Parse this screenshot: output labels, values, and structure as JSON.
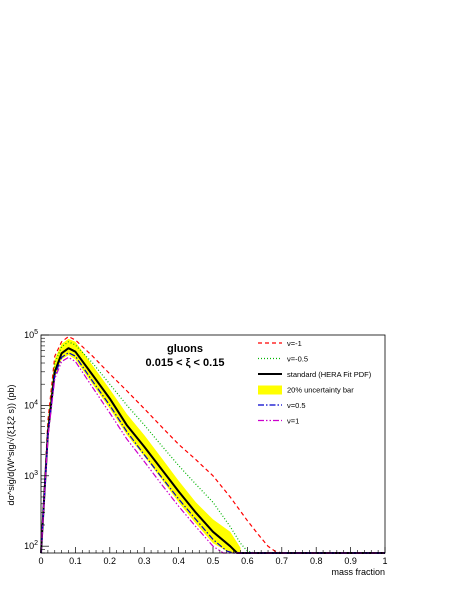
{
  "chart_data": {
    "type": "line",
    "xlabel": "mass fraction",
    "ylabel": "dσ^sig/d(W^sig/√(ξ1ξ2 s)) (pb)",
    "xlim": [
      0,
      1
    ],
    "ylim": [
      80,
      100000
    ],
    "yscale": "log",
    "x_ticks": [
      "0",
      "0.1",
      "0.2",
      "0.3",
      "0.4",
      "0.5",
      "0.6",
      "0.7",
      "0.8",
      "0.9",
      "1"
    ],
    "y_ticks": [
      {
        "base": "10",
        "exp": "2",
        "value": 100
      },
      {
        "base": "10",
        "exp": "3",
        "value": 1000
      },
      {
        "base": "10",
        "exp": "4",
        "value": 10000
      },
      {
        "base": "10",
        "exp": "5",
        "value": 100000
      }
    ],
    "annotation": {
      "title": "gluons",
      "subtitle": "0.015 < ξ < 0.15"
    },
    "legend_position": "top-right",
    "band": {
      "name": "20% uncertainty bar",
      "color": "#ffff00",
      "x": [
        0.0,
        0.02,
        0.04,
        0.06,
        0.08,
        0.1,
        0.15,
        0.2,
        0.25,
        0.3,
        0.35,
        0.4,
        0.45,
        0.5,
        0.55,
        0.58
      ],
      "lower": [
        80,
        3000,
        25000,
        45000,
        52000,
        45000,
        20000,
        9000,
        3800,
        1900,
        900,
        420,
        210,
        110,
        80,
        80
      ],
      "upper": [
        80,
        6000,
        45000,
        75000,
        88000,
        80000,
        37000,
        17000,
        7500,
        3800,
        1800,
        850,
        420,
        240,
        160,
        95
      ]
    },
    "series": [
      {
        "name": "ν=-1",
        "color": "#ff0000",
        "dash": "4,3",
        "width": 1.2,
        "x": [
          0.0,
          0.02,
          0.04,
          0.06,
          0.08,
          0.1,
          0.15,
          0.2,
          0.25,
          0.3,
          0.35,
          0.4,
          0.45,
          0.5,
          0.55,
          0.6,
          0.63,
          0.66,
          0.68,
          0.7,
          1.0
        ],
        "y": [
          80,
          6000,
          50000,
          80000,
          95000,
          85000,
          50000,
          28000,
          16000,
          9000,
          5000,
          2800,
          1700,
          1000,
          500,
          230,
          150,
          100,
          85,
          80,
          80
        ]
      },
      {
        "name": "ν=-0.5",
        "color": "#00b400",
        "dash": "1,2",
        "width": 1.2,
        "x": [
          0.0,
          0.02,
          0.04,
          0.06,
          0.08,
          0.1,
          0.15,
          0.2,
          0.25,
          0.3,
          0.35,
          0.4,
          0.45,
          0.5,
          0.55,
          0.58,
          0.6,
          0.62,
          1.0
        ],
        "y": [
          80,
          5000,
          40000,
          68000,
          80000,
          72000,
          40000,
          20000,
          10000,
          5300,
          2700,
          1400,
          760,
          420,
          190,
          110,
          85,
          80,
          80
        ]
      },
      {
        "name": "standard (HERA Fit PDF)",
        "color": "#000000",
        "dash": "",
        "width": 2.0,
        "x": [
          0.0,
          0.02,
          0.04,
          0.06,
          0.08,
          0.1,
          0.15,
          0.2,
          0.25,
          0.3,
          0.35,
          0.4,
          0.45,
          0.5,
          0.55,
          0.57,
          0.58,
          1.0
        ],
        "y": [
          80,
          4000,
          30000,
          55000,
          65000,
          58000,
          27000,
          12500,
          5200,
          2600,
          1250,
          600,
          300,
          160,
          100,
          80,
          80,
          80
        ]
      },
      {
        "name": "ν=0.5",
        "color": "#0000cc",
        "dash": "6,2,1.5,2",
        "width": 1.2,
        "x": [
          0.0,
          0.02,
          0.04,
          0.06,
          0.08,
          0.1,
          0.15,
          0.2,
          0.25,
          0.3,
          0.35,
          0.4,
          0.45,
          0.5,
          0.54,
          0.56,
          1.0
        ],
        "y": [
          80,
          3800,
          27000,
          48000,
          56000,
          50000,
          22000,
          10000,
          4200,
          2000,
          960,
          470,
          240,
          125,
          85,
          80,
          80
        ]
      },
      {
        "name": "ν=1",
        "color": "#cc00cc",
        "dash": "6,2,1.5,2,1.5,2",
        "width": 1.2,
        "x": [
          0.0,
          0.02,
          0.04,
          0.06,
          0.08,
          0.1,
          0.15,
          0.2,
          0.25,
          0.3,
          0.35,
          0.4,
          0.45,
          0.5,
          0.53,
          1.0
        ],
        "y": [
          80,
          3500,
          24000,
          42000,
          48000,
          42000,
          18000,
          7800,
          3300,
          1600,
          760,
          370,
          190,
          100,
          80,
          80
        ]
      }
    ]
  }
}
